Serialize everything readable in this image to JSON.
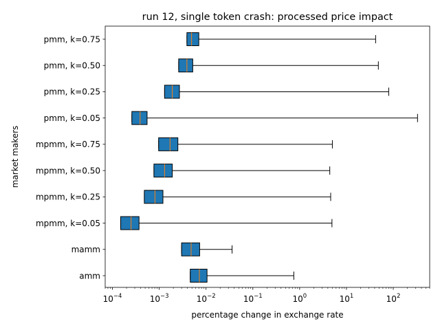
{
  "chart_data": {
    "type": "boxplot",
    "orientation": "horizontal",
    "title": "run 12, single token crash: processed price impact",
    "xlabel": "percentage change in exchange rate",
    "ylabel": "market makers",
    "xscale": "log",
    "xlim": [
      7e-05,
      600
    ],
    "x_ticks": [
      {
        "value": 0.0001,
        "base": "10",
        "exp": "−4"
      },
      {
        "value": 0.001,
        "base": "10",
        "exp": "−3"
      },
      {
        "value": 0.01,
        "base": "10",
        "exp": "−2"
      },
      {
        "value": 0.1,
        "base": "10",
        "exp": "−1"
      },
      {
        "value": 1,
        "base": "10",
        "exp": "0"
      },
      {
        "value": 10,
        "base": "10",
        "exp": "1"
      },
      {
        "value": 100,
        "base": "10",
        "exp": "2"
      }
    ],
    "grid": false,
    "box_color": "#1f77b4",
    "median_color": "#ff7f0e",
    "categories": [
      "pmm, k=0.75",
      "pmm, k=0.50",
      "pmm, k=0.25",
      "pmm, k=0.05",
      "mpmm, k=0.75",
      "mpmm, k=0.50",
      "mpmm, k=0.25",
      "mpmm, k=0.05",
      "mamm",
      "amm"
    ],
    "series": [
      {
        "label": "pmm, k=0.75",
        "whisker_low": 0.0039,
        "q1": 0.0039,
        "median": 0.0049,
        "q3": 0.007,
        "whisker_high": 42
      },
      {
        "label": "pmm, k=0.50",
        "whisker_low": 0.0026,
        "q1": 0.0026,
        "median": 0.0039,
        "q3": 0.0052,
        "whisker_high": 48
      },
      {
        "label": "pmm, k=0.25",
        "whisker_low": 0.0013,
        "q1": 0.0013,
        "median": 0.0019,
        "q3": 0.0027,
        "whisker_high": 80
      },
      {
        "label": "pmm, k=0.05",
        "whisker_low": 0.00026,
        "q1": 0.00026,
        "median": 0.00039,
        "q3": 0.00055,
        "whisker_high": 330
      },
      {
        "label": "mpmm, k=0.75",
        "whisker_low": 0.00097,
        "q1": 0.00097,
        "median": 0.0017,
        "q3": 0.0025,
        "whisker_high": 5.0
      },
      {
        "label": "mpmm, k=0.50",
        "whisker_low": 0.00077,
        "q1": 0.00077,
        "median": 0.0013,
        "q3": 0.0019,
        "whisker_high": 4.4
      },
      {
        "label": "mpmm, k=0.25",
        "whisker_low": 0.00048,
        "q1": 0.00048,
        "median": 0.00081,
        "q3": 0.0012,
        "whisker_high": 4.6
      },
      {
        "label": "mpmm, k=0.05",
        "whisker_low": 0.00015,
        "q1": 0.00015,
        "median": 0.00025,
        "q3": 0.00037,
        "whisker_high": 4.9
      },
      {
        "label": "mamm",
        "whisker_low": 0.003,
        "q1": 0.003,
        "median": 0.0048,
        "q3": 0.0073,
        "whisker_high": 0.036
      },
      {
        "label": "amm",
        "whisker_low": 0.0046,
        "q1": 0.0046,
        "median": 0.0072,
        "q3": 0.0105,
        "whisker_high": 0.75
      }
    ]
  }
}
